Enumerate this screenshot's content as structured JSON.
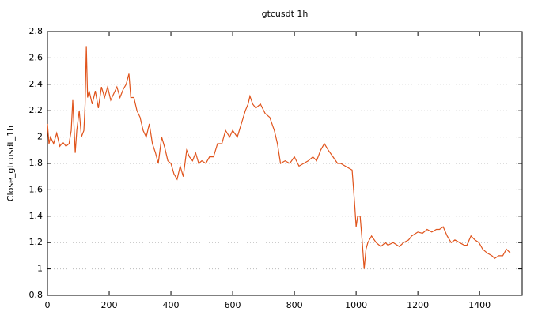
{
  "chart_data": {
    "type": "line",
    "title": "gtcusdt 1h",
    "y_label": "Close_gtcusdt_1h",
    "x": [
      0,
      5,
      10,
      20,
      30,
      40,
      50,
      60,
      70,
      77,
      82,
      90,
      95,
      103,
      110,
      118,
      122,
      126,
      130,
      135,
      145,
      155,
      165,
      175,
      185,
      195,
      205,
      215,
      225,
      235,
      245,
      255,
      264,
      270,
      280,
      290,
      300,
      310,
      320,
      330,
      340,
      350,
      359,
      370,
      380,
      390,
      400,
      410,
      420,
      430,
      440,
      451,
      460,
      470,
      480,
      490,
      500,
      513,
      525,
      538,
      551,
      565,
      577,
      590,
      600,
      615,
      628,
      641,
      650,
      656,
      665,
      675,
      690,
      705,
      720,
      735,
      745,
      755,
      770,
      785,
      800,
      815,
      830,
      845,
      860,
      872,
      885,
      897,
      910,
      925,
      940,
      950,
      965,
      987,
      995,
      1000,
      1005,
      1013,
      1020,
      1026,
      1032,
      1038,
      1050,
      1065,
      1080,
      1095,
      1103,
      1120,
      1140,
      1154,
      1170,
      1180,
      1200,
      1215,
      1230,
      1245,
      1260,
      1270,
      1282,
      1295,
      1308,
      1320,
      1335,
      1350,
      1359,
      1372,
      1385,
      1398,
      1410,
      1425,
      1440,
      1449,
      1462,
      1475,
      1487,
      1500
    ],
    "values": [
      2.1,
      1.95,
      2.0,
      1.95,
      2.03,
      1.93,
      1.96,
      1.93,
      1.95,
      2.05,
      2.28,
      1.88,
      2.05,
      2.2,
      2.0,
      2.05,
      2.25,
      2.69,
      2.3,
      2.35,
      2.25,
      2.35,
      2.22,
      2.38,
      2.3,
      2.38,
      2.28,
      2.33,
      2.38,
      2.3,
      2.36,
      2.4,
      2.48,
      2.3,
      2.3,
      2.2,
      2.15,
      2.05,
      2.0,
      2.1,
      1.95,
      1.88,
      1.8,
      2.0,
      1.92,
      1.82,
      1.8,
      1.72,
      1.68,
      1.78,
      1.7,
      1.9,
      1.85,
      1.82,
      1.88,
      1.8,
      1.82,
      1.8,
      1.85,
      1.85,
      1.95,
      1.95,
      2.05,
      2.0,
      2.05,
      2.0,
      2.1,
      2.2,
      2.25,
      2.31,
      2.25,
      2.22,
      2.25,
      2.18,
      2.15,
      2.05,
      1.95,
      1.8,
      1.82,
      1.8,
      1.85,
      1.78,
      1.8,
      1.82,
      1.85,
      1.82,
      1.9,
      1.95,
      1.9,
      1.85,
      1.8,
      1.8,
      1.78,
      1.75,
      1.5,
      1.32,
      1.4,
      1.4,
      1.2,
      1.0,
      1.15,
      1.2,
      1.25,
      1.2,
      1.17,
      1.2,
      1.18,
      1.2,
      1.17,
      1.2,
      1.22,
      1.25,
      1.28,
      1.27,
      1.3,
      1.28,
      1.3,
      1.3,
      1.32,
      1.25,
      1.2,
      1.22,
      1.2,
      1.18,
      1.18,
      1.25,
      1.22,
      1.2,
      1.15,
      1.12,
      1.1,
      1.08,
      1.1,
      1.1,
      1.15,
      1.12
    ],
    "color": "#e0541c",
    "xlim": [
      0,
      1538
    ],
    "xticks": [
      0,
      200,
      400,
      600,
      800,
      1000,
      1200,
      1400
    ],
    "ylim": [
      0.8,
      2.8
    ],
    "yticks": [
      0.8,
      1,
      1.2,
      1.4,
      1.6,
      1.8,
      2,
      2.2,
      2.4,
      2.6,
      2.8
    ],
    "grid": true
  }
}
